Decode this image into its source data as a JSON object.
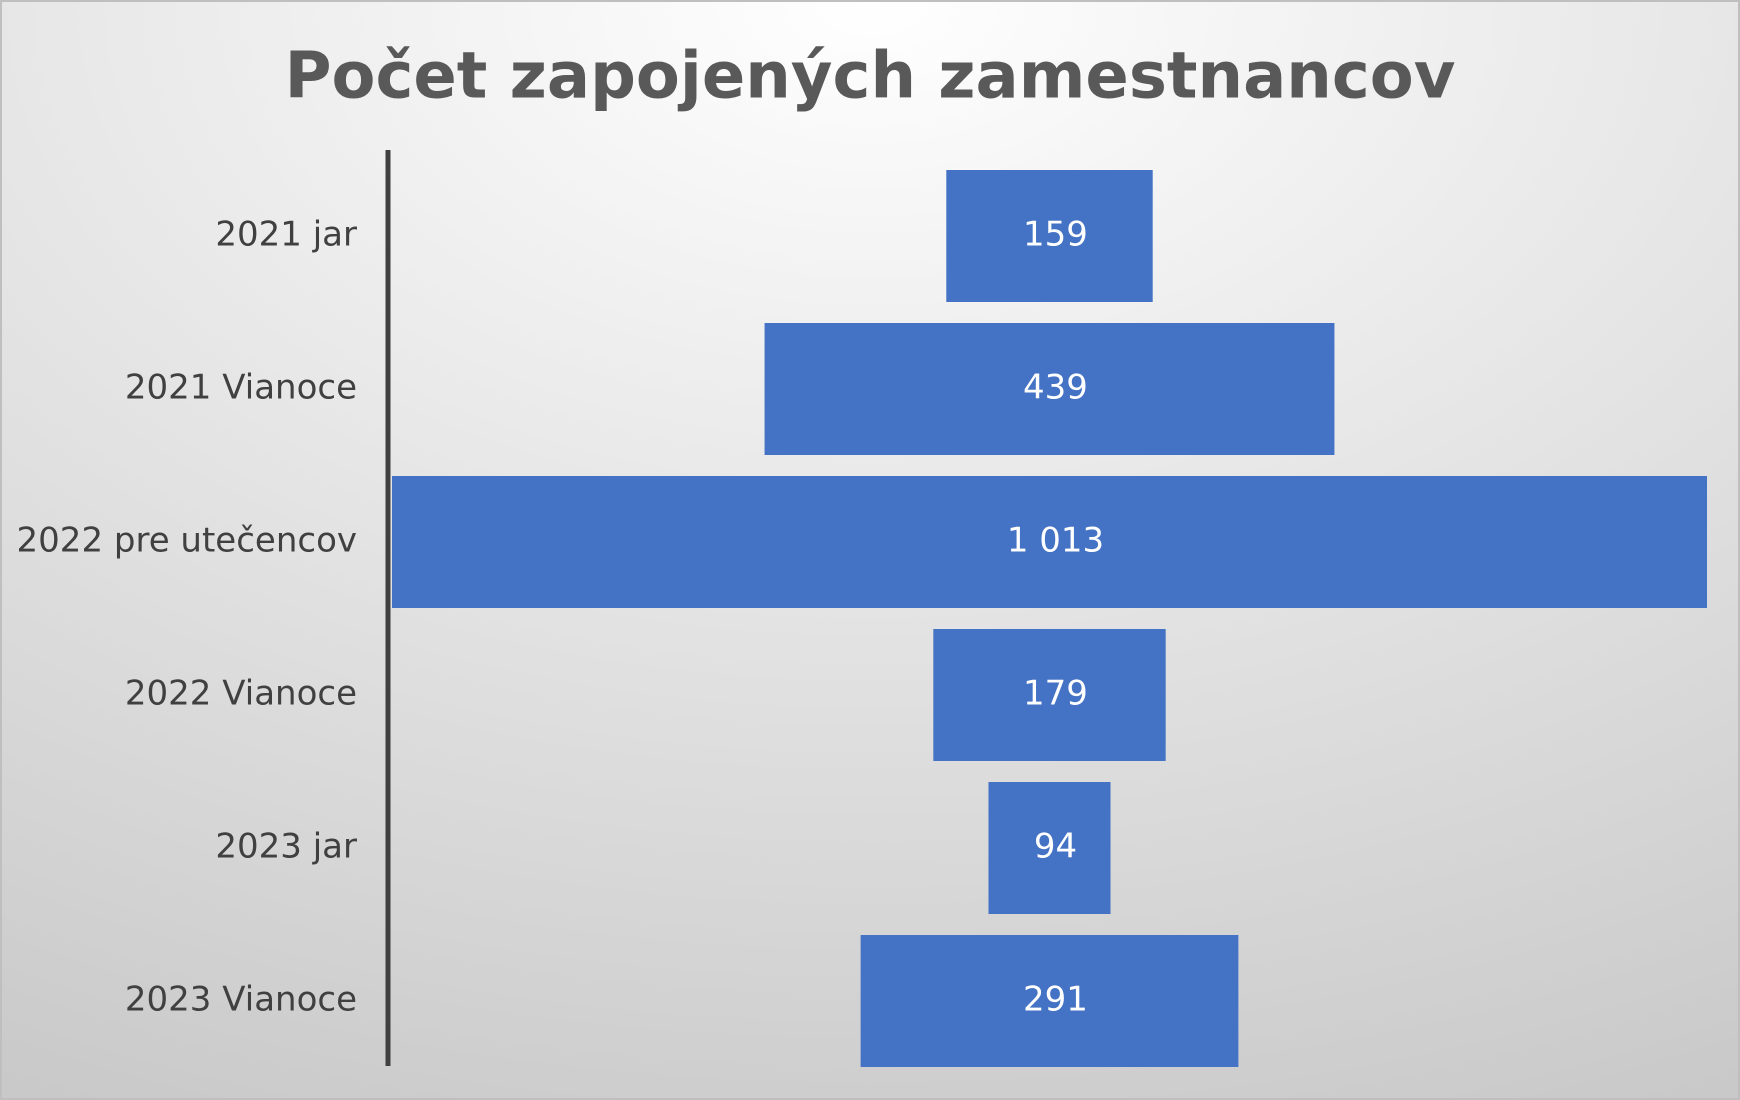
{
  "chart_data": {
    "type": "funnel",
    "title": "Počet zapojených zamestnancov",
    "categories": [
      "2021 jar",
      "2021 Vianoce",
      "2022 pre utečencov",
      "2022 Vianoce",
      "2023 jar",
      "2023 Vianoce"
    ],
    "values": [
      159,
      439,
      1013,
      179,
      94,
      291
    ],
    "value_labels": [
      "159",
      "439",
      "1 013",
      "179",
      "94",
      "291"
    ],
    "color": "#4472c4"
  }
}
